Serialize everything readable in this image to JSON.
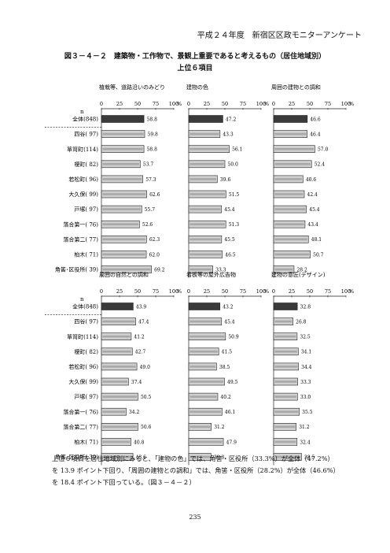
{
  "page": {
    "header": "平成２４年度　新宿区区政モニターアンケート",
    "title": "図３－４－２　建築物・工作物で、景観上重要であると考えるもの（居住地域別）",
    "subtitle": "上位６項目",
    "n_label": "n",
    "body_lines": [
      "上位６項目を居住地域別にみると、「建物の色」では、角筈・区役所（33.3%）が全体（47.2%）",
      "を 13.9 ポイント下回り、「周囲の建物との調和」では、角筈・区役所（28.2%）が全体（46.6%）",
      "を 18.4 ポイント下回っている。（図３－４－２）"
    ],
    "page_number": "235"
  },
  "chart_data": {
    "type": "bar",
    "orientation": "horizontal",
    "categories": [
      "全体(848)",
      "四谷( 97)",
      "箪笥町(114)",
      "榎町( 82)",
      "若松町( 96)",
      "大久保( 99)",
      "戸塚( 97)",
      "落合第一( 76)",
      "落合第二( 77)",
      "柏木( 71)",
      "角筈･区役所( 39)"
    ],
    "xlim": [
      0,
      100
    ],
    "ticks": [
      "0",
      "25",
      "50",
      "75",
      "100"
    ],
    "unit": "%",
    "colors": {
      "total": "#3a3a3a",
      "region": "#cfcfcf",
      "region_inner": "#a8a8a8",
      "border": "#222222"
    },
    "panels": [
      {
        "title": "植栽等、道路沿いのみどり",
        "values": [
          58.8,
          59.8,
          58.8,
          53.7,
          57.3,
          62.6,
          55.7,
          52.6,
          62.3,
          62.0,
          69.2
        ]
      },
      {
        "title": "建物の色",
        "values": [
          47.2,
          43.3,
          56.1,
          50.0,
          39.6,
          51.5,
          45.4,
          51.3,
          45.5,
          46.5,
          33.3
        ]
      },
      {
        "title": "周囲の建物との調和",
        "values": [
          46.6,
          46.4,
          57.0,
          52.4,
          40.6,
          42.4,
          45.4,
          43.4,
          48.1,
          50.7,
          28.2
        ]
      },
      {
        "title": "周囲の自然との調和",
        "values": [
          43.9,
          47.4,
          41.2,
          42.7,
          49.0,
          37.4,
          50.5,
          34.2,
          50.6,
          40.8,
          43.6
        ]
      },
      {
        "title": "看板等の屋外広告物",
        "values": [
          43.2,
          45.4,
          50.9,
          41.5,
          38.5,
          49.5,
          40.2,
          46.1,
          31.2,
          47.9,
          30.8
        ]
      },
      {
        "title": "建物の意匠(デザイン)",
        "values": [
          32.8,
          26.8,
          32.5,
          34.1,
          34.4,
          33.3,
          33.0,
          35.5,
          31.2,
          32.4,
          38.5
        ]
      }
    ]
  }
}
